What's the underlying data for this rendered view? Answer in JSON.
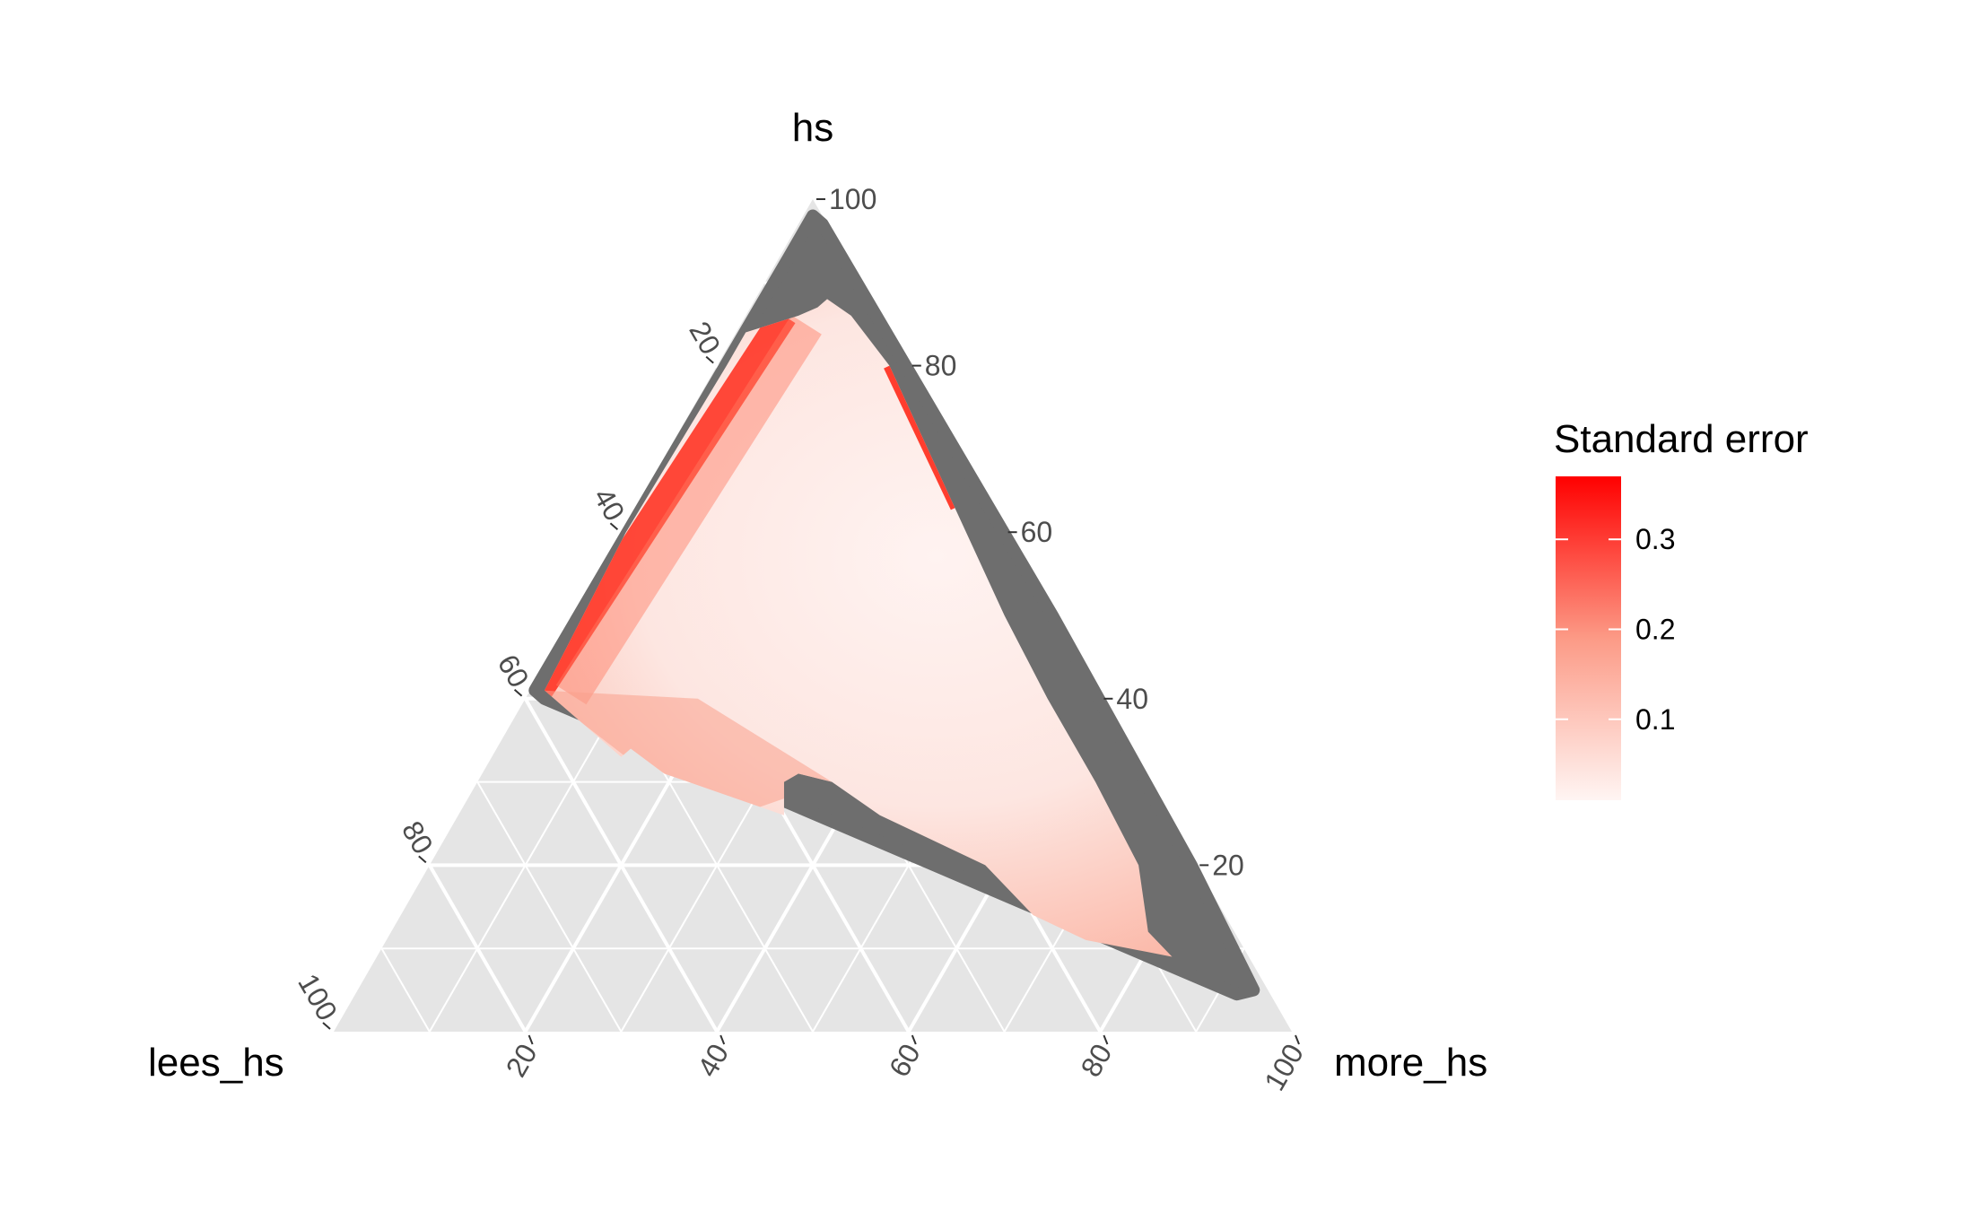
{
  "chart_data": {
    "type": "ternary-heatmap",
    "axes": {
      "top": {
        "label": "hs",
        "ticks": [
          20,
          40,
          60,
          80,
          100
        ]
      },
      "left": {
        "label": "lees_hs",
        "ticks": [
          20,
          40,
          60,
          80,
          100
        ]
      },
      "right": {
        "label": "more_hs",
        "ticks": [
          20,
          40,
          60,
          80,
          100
        ]
      }
    },
    "grid": true,
    "panel_background": "#e5e5e5",
    "na_color": "#6e6e6e",
    "fill_scale": {
      "name": "Standard error",
      "low_color": "#fff5f3",
      "high_color": "#ff0000",
      "range": [
        0.01,
        0.37
      ],
      "breaks": [
        {
          "value": 0.1,
          "label": "0.1"
        },
        {
          "value": 0.2,
          "label": "0.2"
        },
        {
          "value": 0.3,
          "label": "0.3"
        }
      ]
    },
    "legend_position": "right"
  }
}
